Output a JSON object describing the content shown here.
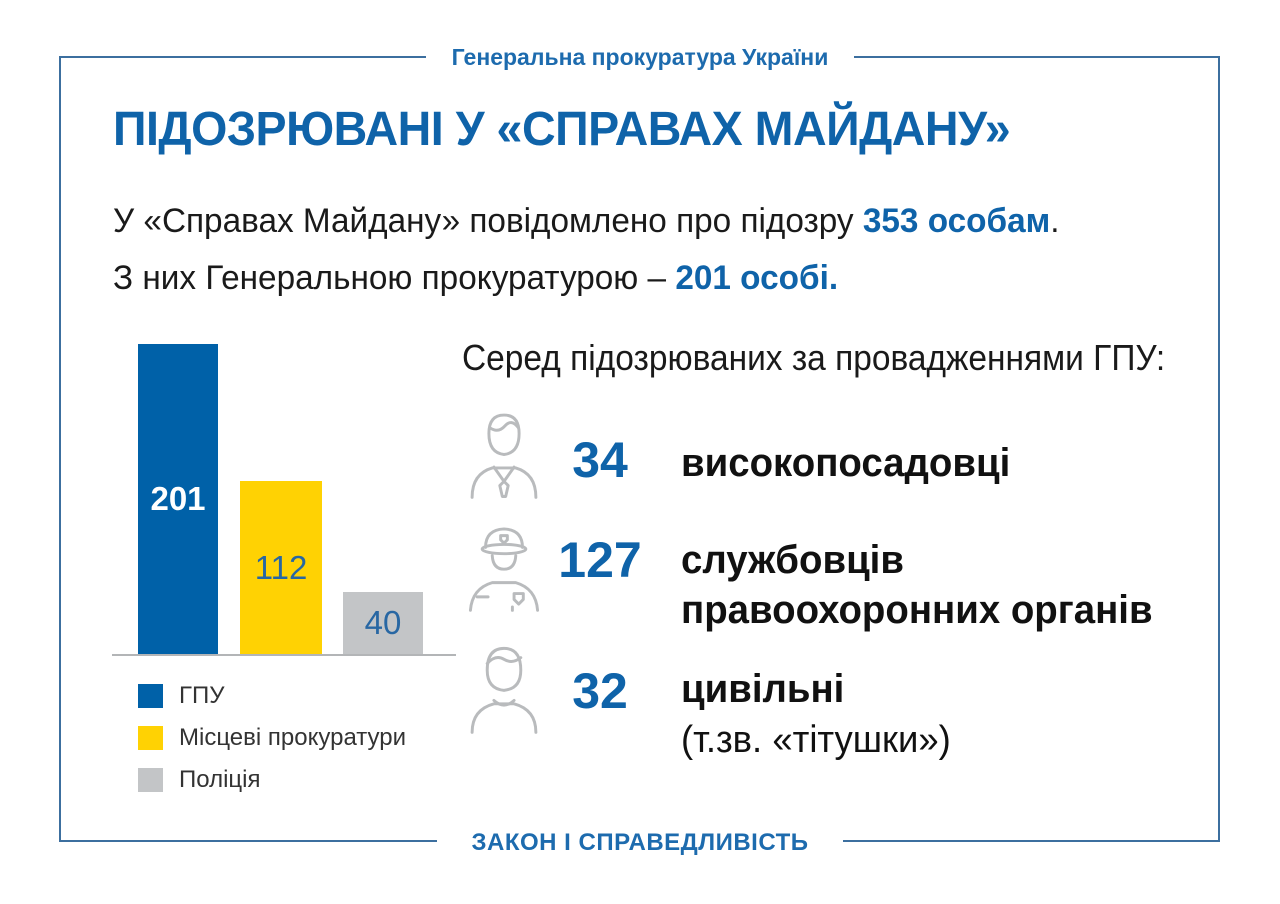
{
  "header": {
    "org": "Генеральна прокуратура України"
  },
  "title": "ПІДОЗРЮВАНІ У «СПРАВАХ МАЙДАНУ»",
  "intro": {
    "line1": {
      "pre": "У «Справах Майдану» повідомлено про підозру ",
      "strong": "353 особам",
      "post": "."
    },
    "line2": {
      "pre": "З них Генеральною прокуратурою – ",
      "strong": "201 особі."
    }
  },
  "chart_data": {
    "type": "bar",
    "title": "",
    "categories": [
      "ГПУ",
      "Місцеві прокуратури",
      "Поліція"
    ],
    "values": [
      201,
      112,
      40
    ],
    "colors": [
      "#0061a8",
      "#ffd203",
      "#c3c5c7"
    ],
    "value_labels": [
      "201",
      "112",
      "40"
    ],
    "legend": [
      "ГПУ",
      "Місцеві прокуратури",
      "Поліція"
    ],
    "legend_position": "bottom-left",
    "grid": false,
    "axes_visible": false,
    "ylim": [
      0,
      210
    ]
  },
  "breakdown": {
    "heading": "Серед підозрюваних за провадженнями ГПУ:",
    "items": [
      {
        "icon": "official-icon",
        "count": "34",
        "line1": "високопосадовці",
        "line2": "",
        "line2_bold": false
      },
      {
        "icon": "police-officer-icon",
        "count": "127",
        "line1": "службовців",
        "line2": "правоохоронних органів",
        "line2_bold": true
      },
      {
        "icon": "civilian-icon",
        "count": "32",
        "line1": "цивільні",
        "line2": "(т.зв. «тітушки»)",
        "line2_bold": false
      }
    ]
  },
  "footer": {
    "slogan": "ЗАКОН І СПРАВЕДЛИВІСТЬ"
  },
  "colors": {
    "accent_blue": "#0f63a9",
    "frame_blue": "#3c6f9f",
    "bar_blue": "#0061a8",
    "bar_yellow": "#ffd203",
    "bar_gray": "#c3c5c7",
    "baseline_gray": "#b3b5b7",
    "icon_gray": "#b9bbbd"
  }
}
